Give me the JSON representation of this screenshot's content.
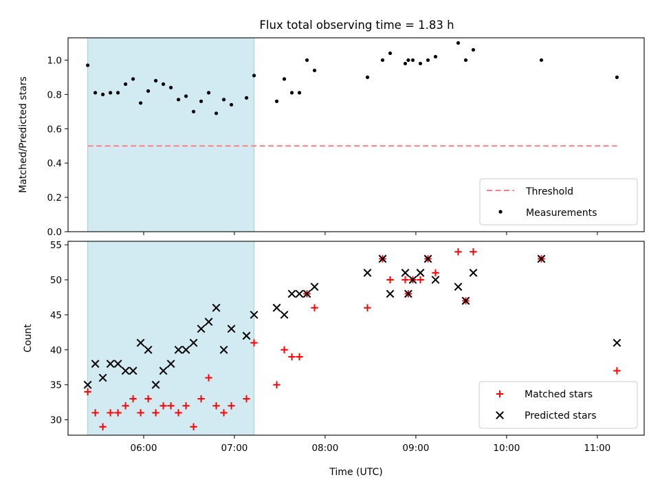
{
  "title": "Flux total observing time = 1.83 h",
  "chart_data": [
    {
      "type": "scatter",
      "ylabel": "Matched/Predicted stars",
      "ylim": [
        0,
        1.13
      ],
      "yticks": [
        0.0,
        0.2,
        0.4,
        0.6,
        0.8,
        1.0
      ],
      "ytick_labels": [
        "0.0",
        "0.2",
        "0.4",
        "0.6",
        "0.8",
        "1.0"
      ],
      "shaded_span_x": [
        "05:23",
        "07:13"
      ],
      "shade_color": "#add8e6",
      "threshold": {
        "name": "Threshold",
        "y": 0.5,
        "x_range": [
          "05:23",
          "11:13"
        ],
        "color": "#ff7f7f"
      },
      "series": [
        {
          "name": "Measurements",
          "color": "#000000",
          "x": [
            "05:23",
            "05:28",
            "05:33",
            "05:38",
            "05:43",
            "05:48",
            "05:53",
            "05:58",
            "06:03",
            "06:08",
            "06:13",
            "06:18",
            "06:23",
            "06:28",
            "06:33",
            "06:38",
            "06:43",
            "06:48",
            "06:53",
            "06:58",
            "07:08",
            "07:13",
            "07:28",
            "07:33",
            "07:38",
            "07:43",
            "07:48",
            "07:53",
            "08:28",
            "08:38",
            "08:43",
            "08:53",
            "08:55",
            "08:58",
            "09:03",
            "09:08",
            "09:13",
            "09:28",
            "09:33",
            "09:38",
            "10:23",
            "11:13"
          ],
          "y": [
            0.97,
            0.81,
            0.8,
            0.81,
            0.81,
            0.86,
            0.89,
            0.75,
            0.82,
            0.88,
            0.86,
            0.84,
            0.77,
            0.79,
            0.7,
            0.76,
            0.81,
            0.69,
            0.77,
            0.74,
            0.78,
            0.91,
            0.76,
            0.89,
            0.81,
            0.81,
            1.0,
            0.94,
            0.9,
            1.0,
            1.04,
            0.98,
            1.0,
            1.0,
            0.98,
            1.0,
            1.02,
            1.1,
            1.0,
            1.06,
            1.0,
            0.9
          ]
        }
      ],
      "legend_position": "lower right"
    },
    {
      "type": "scatter",
      "xlabel": "Time (UTC)",
      "ylabel": "Count",
      "ylim": [
        27.8,
        55.5
      ],
      "yticks": [
        30,
        35,
        40,
        45,
        50,
        55
      ],
      "ytick_labels": [
        "30",
        "35",
        "40",
        "45",
        "50",
        "55"
      ],
      "xlim": [
        "05:10",
        "11:31"
      ],
      "xticks": [
        "06:00",
        "07:00",
        "08:00",
        "09:00",
        "10:00",
        "11:00"
      ],
      "shaded_span_x": [
        "05:23",
        "07:13"
      ],
      "shade_color": "#add8e6",
      "series": [
        {
          "name": "Matched stars",
          "marker": "+",
          "color": "#ff0000",
          "x": [
            "05:23",
            "05:28",
            "05:33",
            "05:38",
            "05:43",
            "05:48",
            "05:53",
            "05:58",
            "06:03",
            "06:08",
            "06:13",
            "06:18",
            "06:23",
            "06:28",
            "06:33",
            "06:38",
            "06:43",
            "06:48",
            "06:53",
            "06:58",
            "07:08",
            "07:13",
            "07:28",
            "07:33",
            "07:38",
            "07:43",
            "07:48",
            "07:53",
            "08:28",
            "08:38",
            "08:43",
            "08:53",
            "08:55",
            "08:58",
            "09:03",
            "09:08",
            "09:13",
            "09:28",
            "09:33",
            "09:38",
            "10:23",
            "11:13"
          ],
          "y": [
            34,
            31,
            29,
            31,
            31,
            32,
            33,
            31,
            33,
            31,
            32,
            32,
            31,
            32,
            29,
            33,
            36,
            32,
            31,
            32,
            33,
            41,
            35,
            40,
            39,
            39,
            48,
            46,
            46,
            53,
            50,
            50,
            48,
            50,
            50,
            53,
            51,
            54,
            47,
            54,
            53,
            37
          ]
        },
        {
          "name": "Predicted stars",
          "marker": "x",
          "color": "#000000",
          "x": [
            "05:23",
            "05:28",
            "05:33",
            "05:38",
            "05:43",
            "05:48",
            "05:53",
            "05:58",
            "06:03",
            "06:08",
            "06:13",
            "06:18",
            "06:23",
            "06:28",
            "06:33",
            "06:38",
            "06:43",
            "06:48",
            "06:53",
            "06:58",
            "07:08",
            "07:13",
            "07:28",
            "07:33",
            "07:38",
            "07:43",
            "07:48",
            "07:53",
            "08:28",
            "08:38",
            "08:43",
            "08:53",
            "08:55",
            "08:58",
            "09:03",
            "09:08",
            "09:13",
            "09:28",
            "09:33",
            "09:38",
            "10:23",
            "11:13"
          ],
          "y": [
            35,
            38,
            36,
            38,
            38,
            37,
            37,
            41,
            40,
            35,
            37,
            38,
            40,
            40,
            41,
            43,
            44,
            46,
            40,
            43,
            42,
            45,
            46,
            45,
            48,
            48,
            48,
            49,
            51,
            53,
            48,
            51,
            48,
            50,
            51,
            53,
            50,
            49,
            47,
            51,
            53,
            41
          ]
        }
      ],
      "legend_position": "lower right"
    }
  ]
}
